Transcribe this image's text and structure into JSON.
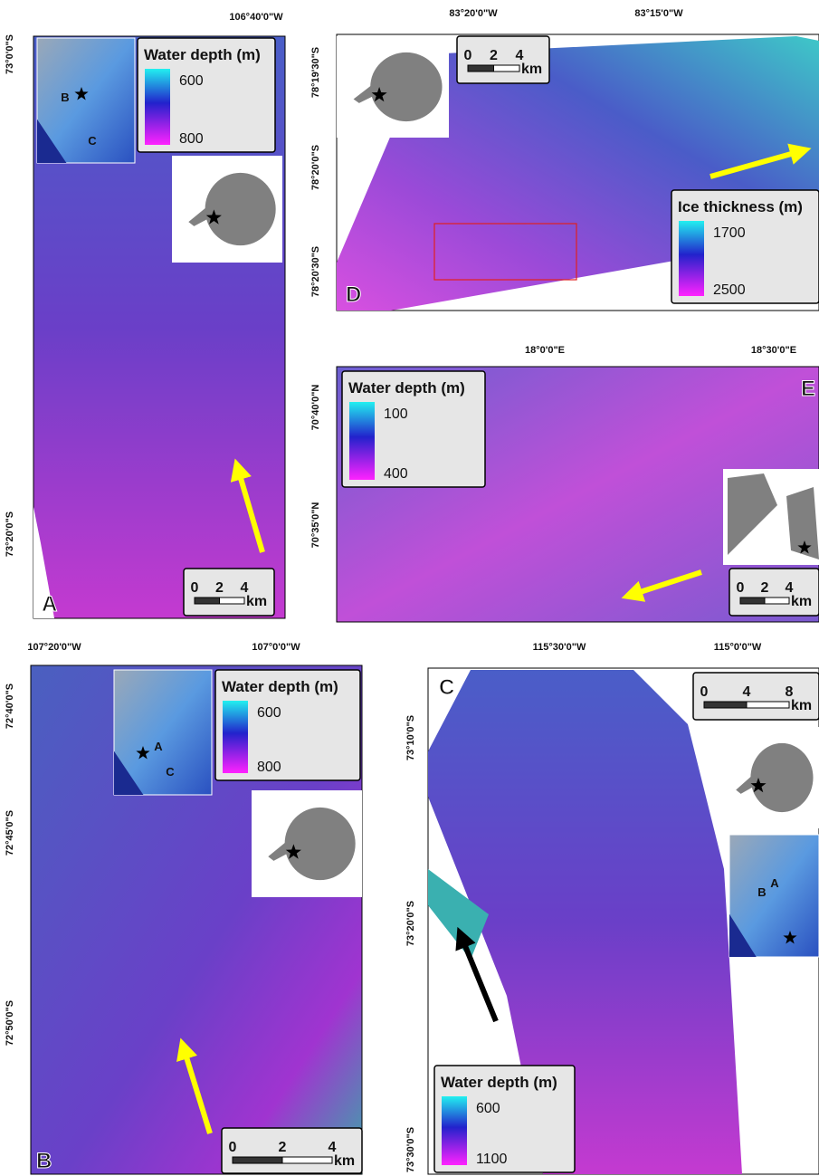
{
  "panels": [
    {
      "letter": "A",
      "x_labels": [
        "106°40'0\"W"
      ],
      "y_labels": [
        "73°0'0\"S",
        "73°20'0\"S"
      ],
      "legend": {
        "title": "Water depth (m)",
        "min": 600,
        "max": 800
      },
      "scale": {
        "ticks": [
          0,
          2,
          4
        ],
        "unit": "km"
      },
      "inset_labels": [
        "B",
        "C"
      ]
    },
    {
      "letter": "D",
      "x_labels": [
        "83°20'0\"W",
        "83°15'0\"W"
      ],
      "y_labels": [
        "78°19'30\"S",
        "78°20'0\"S",
        "78°20'30\"S"
      ],
      "legend": {
        "title": "Ice thickness (m)",
        "min": 1700,
        "max": 2500
      },
      "scale": {
        "ticks": [
          0,
          2,
          4
        ],
        "unit": "km"
      },
      "inset_labels": []
    },
    {
      "letter": "E",
      "x_labels": [
        "18°0'0\"E",
        "18°30'0\"E"
      ],
      "y_labels": [
        "70°40'0\"N",
        "70°35'0\"N"
      ],
      "legend": {
        "title": "Water depth (m)",
        "min": 100,
        "max": 400
      },
      "scale": {
        "ticks": [
          0,
          2,
          4
        ],
        "unit": "km"
      },
      "inset_labels": []
    },
    {
      "letter": "B",
      "x_labels": [
        "107°20'0\"W",
        "107°0'0\"W"
      ],
      "y_labels": [
        "72°40'0\"S",
        "72°45'0\"S",
        "72°50'0\"S"
      ],
      "legend": {
        "title": "Water depth (m)",
        "min": 600,
        "max": 800
      },
      "scale": {
        "ticks": [
          0,
          2,
          4
        ],
        "unit": "km"
      },
      "inset_labels": [
        "A",
        "C"
      ]
    },
    {
      "letter": "C",
      "x_labels": [
        "115°30'0\"W",
        "115°0'0\"W"
      ],
      "y_labels": [
        "73°10'0\"S",
        "73°20'0\"S",
        "73°30'0\"S"
      ],
      "legend": {
        "title": "Water depth (m)",
        "min": 600,
        "max": 1100
      },
      "scale": {
        "ticks": [
          0,
          4,
          8
        ],
        "unit": "km"
      },
      "inset_labels": [
        "B",
        "A"
      ]
    }
  ]
}
